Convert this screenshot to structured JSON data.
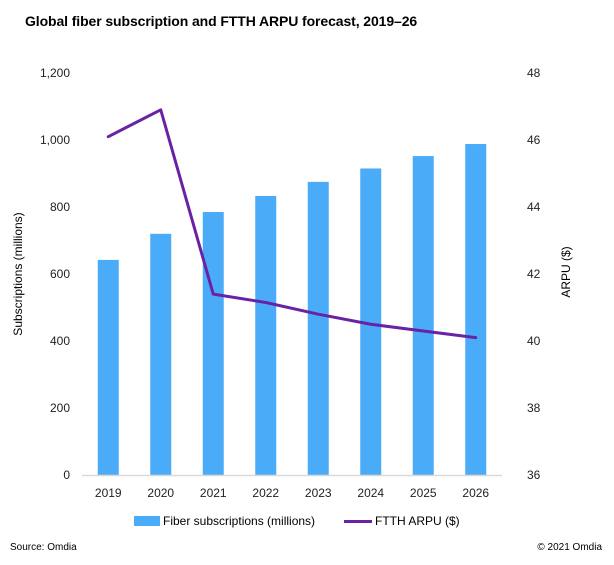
{
  "title": "Global fiber subscription and FTTH ARPU forecast, 2019–26",
  "footer": {
    "source": "Source: Omdia",
    "copyright": "© 2021 Omdia"
  },
  "chart_data": {
    "type": "bar+line",
    "title": "Global fiber subscription and FTTH ARPU forecast, 2019–26",
    "categories": [
      "2019",
      "2020",
      "2021",
      "2022",
      "2023",
      "2024",
      "2025",
      "2026"
    ],
    "series": [
      {
        "name": "Fiber subscriptions (millions)",
        "type": "bar",
        "axis": "left",
        "color": "#4AABF8",
        "values": [
          642,
          720,
          785,
          833,
          875,
          915,
          952,
          988
        ]
      },
      {
        "name": "FTTH ARPU ($)",
        "type": "line",
        "axis": "right",
        "color": "#6A22A5",
        "values": [
          46.1,
          46.9,
          41.4,
          41.15,
          40.8,
          40.5,
          40.3,
          40.1
        ]
      }
    ],
    "ylabel": "Subscriptions (millions)",
    "ylabel_right": "ARPU ($)",
    "xlabel": "",
    "ylim": [
      0,
      1200
    ],
    "ylim_right": [
      36,
      48
    ],
    "yticks": [
      "0",
      "200",
      "400",
      "600",
      "800",
      "1,000",
      "1,200"
    ],
    "yticks_right": [
      "36",
      "38",
      "40",
      "42",
      "44",
      "46",
      "48"
    ],
    "grid": false,
    "legend": "bottom"
  }
}
